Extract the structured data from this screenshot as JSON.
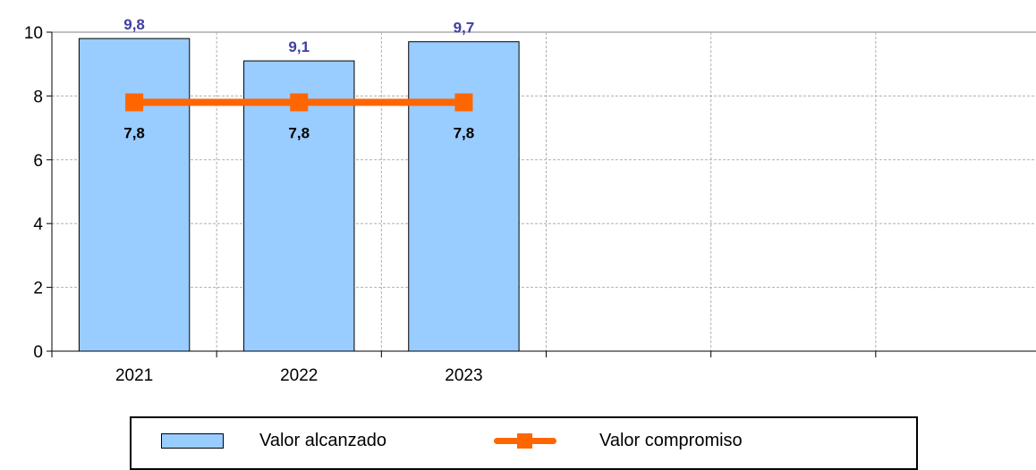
{
  "chart_data": {
    "type": "bar",
    "categories": [
      "2021",
      "2022",
      "2023",
      "",
      "",
      ""
    ],
    "series": [
      {
        "name": "Valor alcanzado",
        "type": "bar",
        "values": [
          9.8,
          9.1,
          9.7,
          null,
          null,
          null
        ],
        "labels": [
          "9,8",
          "9,1",
          "9,7",
          "",
          "",
          ""
        ],
        "color": "#99ccff",
        "label_color": "#3f3f9f"
      },
      {
        "name": "Valor compromiso",
        "type": "line",
        "values": [
          7.8,
          7.8,
          7.8,
          null,
          null,
          null
        ],
        "labels": [
          "7,8",
          "7,8",
          "7,8",
          "",
          "",
          ""
        ],
        "color": "#ff6600",
        "label_color": "#000000"
      }
    ],
    "ylim": [
      0,
      10
    ],
    "yticks": [
      0,
      2,
      4,
      6,
      8,
      10
    ],
    "title": "",
    "xlabel": "",
    "ylabel": "",
    "grid": true,
    "legend_position": "bottom"
  },
  "legend": {
    "bar_label": "Valor alcanzado",
    "line_label": "Valor compromiso"
  }
}
